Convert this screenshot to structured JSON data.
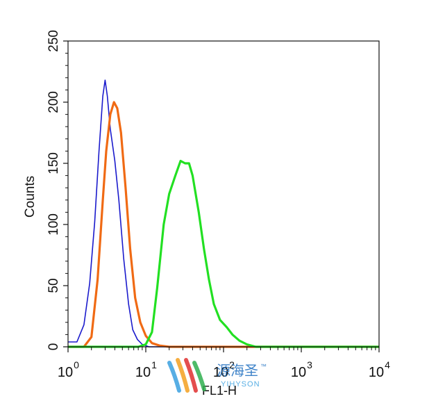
{
  "chart_data": {
    "type": "line",
    "title": "",
    "xlabel": "FL1-H",
    "ylabel": "Counts",
    "x_scale": "log",
    "xlim": [
      1,
      10000
    ],
    "ylim": [
      0,
      250
    ],
    "grid": false,
    "x_ticks": [
      {
        "value": 1,
        "base": "10",
        "exp": "0"
      },
      {
        "value": 10,
        "base": "10",
        "exp": "1"
      },
      {
        "value": 100,
        "base": "10",
        "exp": "2"
      },
      {
        "value": 1000,
        "base": "10",
        "exp": "3"
      },
      {
        "value": 10000,
        "base": "10",
        "exp": "4"
      }
    ],
    "y_ticks": [
      "0",
      "50",
      "100",
      "150",
      "200",
      "250"
    ],
    "series": [
      {
        "color": "#1a1acc",
        "points": [
          [
            1.0,
            4
          ],
          [
            1.3,
            4
          ],
          [
            1.6,
            18
          ],
          [
            1.9,
            52
          ],
          [
            2.2,
            102
          ],
          [
            2.5,
            160
          ],
          [
            2.8,
            205
          ],
          [
            3.0,
            218
          ],
          [
            3.2,
            205
          ],
          [
            3.5,
            178
          ],
          [
            4.0,
            152
          ],
          [
            4.5,
            120
          ],
          [
            5.2,
            72
          ],
          [
            6.0,
            35
          ],
          [
            6.8,
            14
          ],
          [
            7.8,
            6
          ],
          [
            9.0,
            2
          ],
          [
            11,
            0
          ],
          [
            10000,
            0
          ]
        ]
      },
      {
        "color": "#f06a14",
        "points": [
          [
            1.0,
            0
          ],
          [
            1.6,
            0
          ],
          [
            2.0,
            8
          ],
          [
            2.4,
            55
          ],
          [
            2.8,
            120
          ],
          [
            3.1,
            160
          ],
          [
            3.5,
            190
          ],
          [
            3.9,
            200
          ],
          [
            4.3,
            195
          ],
          [
            4.8,
            175
          ],
          [
            5.5,
            130
          ],
          [
            6.3,
            80
          ],
          [
            7.3,
            40
          ],
          [
            8.5,
            20
          ],
          [
            10,
            9
          ],
          [
            12,
            3
          ],
          [
            15,
            1
          ],
          [
            20,
            0
          ],
          [
            10000,
            0
          ]
        ]
      },
      {
        "color": "#22e022",
        "points": [
          [
            1.0,
            0
          ],
          [
            8,
            0
          ],
          [
            10,
            2
          ],
          [
            12,
            12
          ],
          [
            14,
            48
          ],
          [
            17,
            100
          ],
          [
            20,
            125
          ],
          [
            24,
            140
          ],
          [
            28,
            152
          ],
          [
            32,
            150
          ],
          [
            36,
            150
          ],
          [
            40,
            140
          ],
          [
            48,
            110
          ],
          [
            56,
            80
          ],
          [
            65,
            55
          ],
          [
            75,
            35
          ],
          [
            90,
            22
          ],
          [
            110,
            16
          ],
          [
            130,
            10
          ],
          [
            160,
            5
          ],
          [
            200,
            2
          ],
          [
            260,
            0
          ],
          [
            10000,
            0
          ]
        ]
      }
    ]
  },
  "watermark": {
    "text_cn": "源海圣",
    "text_en": "YIHYSON",
    "tm": "™"
  }
}
